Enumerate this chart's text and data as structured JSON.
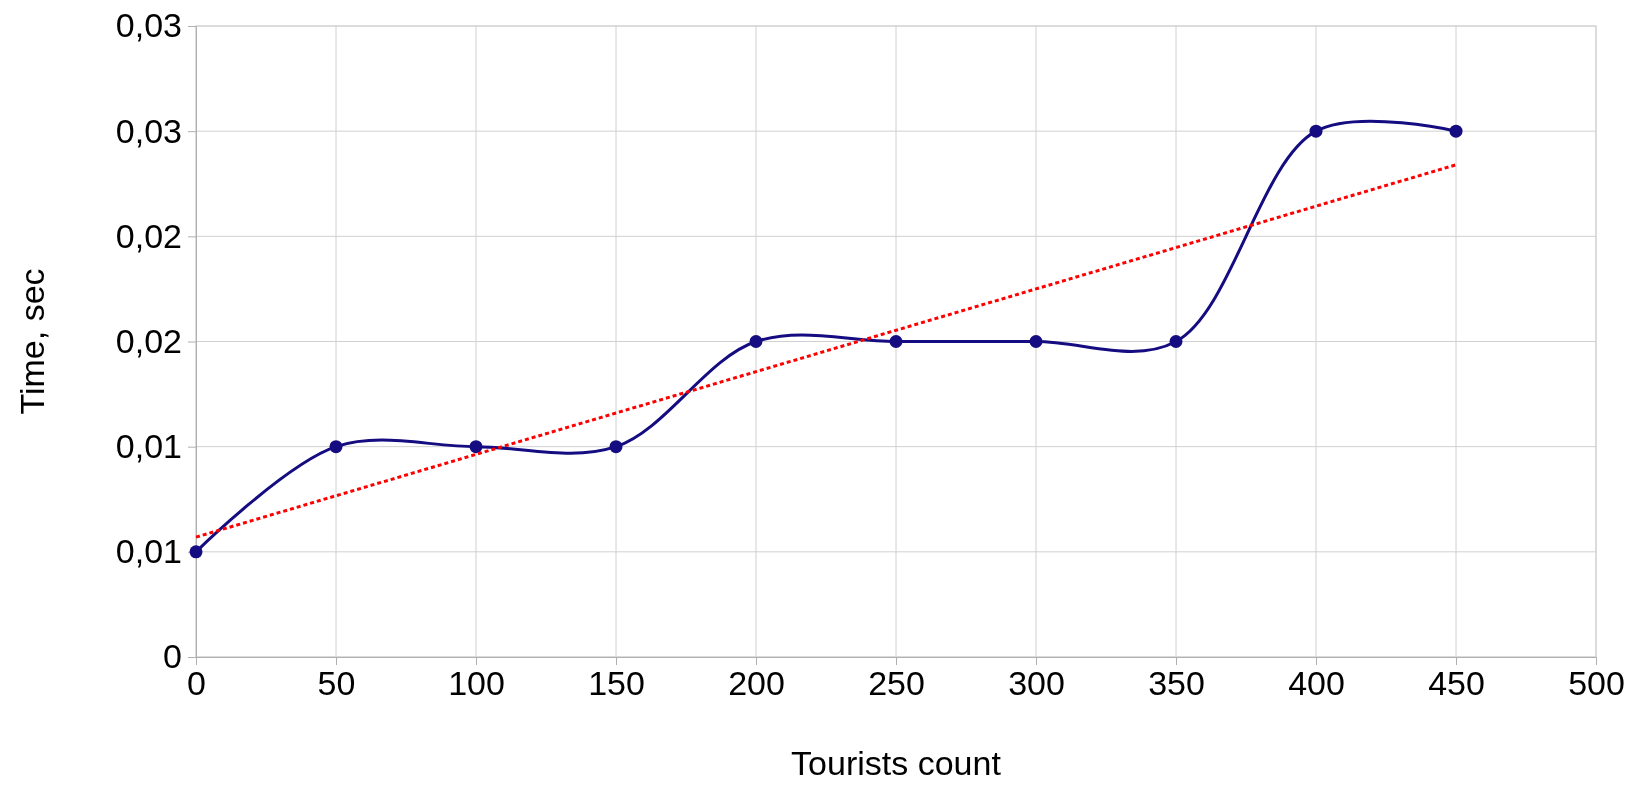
{
  "chart_data": {
    "type": "line",
    "xlabel": "Tourists count",
    "ylabel": "Time, sec",
    "xlim": [
      0,
      500
    ],
    "xticks": [
      0,
      50,
      100,
      150,
      200,
      250,
      300,
      350,
      400,
      450,
      500
    ],
    "ylim": [
      0,
      0.03
    ],
    "yticks": [
      0,
      {
        "value": 0.005,
        "label": "0,01"
      },
      {
        "value": 0.01,
        "label": "0,01"
      },
      {
        "value": 0.015,
        "label": "0,02"
      },
      {
        "value": 0.02,
        "label": "0,02"
      },
      {
        "value": 0.025,
        "label": "0,03"
      },
      {
        "value": 0.03,
        "label": "0,03"
      }
    ],
    "grid": true,
    "series": [
      {
        "color": "#140c80",
        "marker": "circle",
        "line_style": "solid",
        "x": [
          0,
          50,
          100,
          150,
          200,
          250,
          300,
          350,
          400,
          450
        ],
        "values": [
          0.005,
          0.01,
          0.01,
          0.01,
          0.015,
          0.015,
          0.015,
          0.015,
          0.025,
          0.025
        ]
      },
      {
        "color": "#ff0000",
        "marker": "none",
        "line_style": "dotted",
        "x": [
          0,
          450
        ],
        "values": [
          0.0057,
          0.0234
        ]
      }
    ]
  }
}
